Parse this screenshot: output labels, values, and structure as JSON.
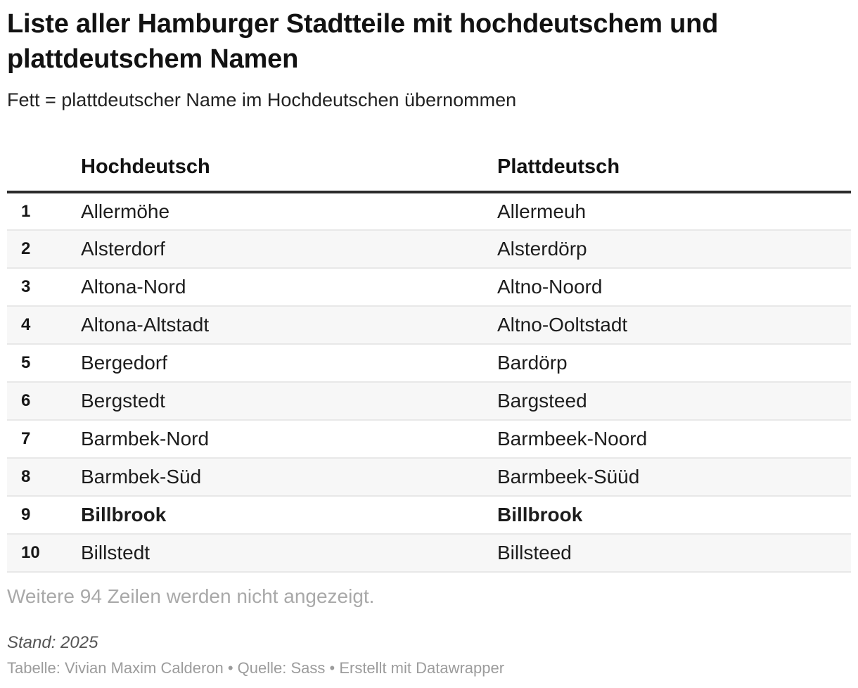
{
  "header": {
    "title": "Liste aller Hamburger Stadtteile mit hochdeutschem und plattdeutschem Namen",
    "subtitle": "Fett = plattdeutscher Name im Hochdeutschen übernommen"
  },
  "chart_data": {
    "type": "table",
    "title": "Liste aller Hamburger Stadtteile mit hochdeutschem und plattdeutschem Namen",
    "columns": [
      "Hochdeutsch",
      "Plattdeutsch"
    ],
    "rows": [
      {
        "num": "1",
        "hochdeutsch": "Allermöhe",
        "plattdeutsch": "Allermeuh",
        "bold": false
      },
      {
        "num": "2",
        "hochdeutsch": "Alsterdorf",
        "plattdeutsch": "Alsterdörp",
        "bold": false
      },
      {
        "num": "3",
        "hochdeutsch": "Altona-Nord",
        "plattdeutsch": "Altno-Noord",
        "bold": false
      },
      {
        "num": "4",
        "hochdeutsch": "Altona-Altstadt",
        "plattdeutsch": "Altno-Ooltstadt",
        "bold": false
      },
      {
        "num": "5",
        "hochdeutsch": "Bergedorf",
        "plattdeutsch": "Bardörp",
        "bold": false
      },
      {
        "num": "6",
        "hochdeutsch": "Bergstedt",
        "plattdeutsch": "Bargsteed",
        "bold": false
      },
      {
        "num": "7",
        "hochdeutsch": "Barmbek-Nord",
        "plattdeutsch": "Barmbeek-Noord",
        "bold": false
      },
      {
        "num": "8",
        "hochdeutsch": "Barmbek-Süd",
        "plattdeutsch": "Barmbeek-Süüd",
        "bold": false
      },
      {
        "num": "9",
        "hochdeutsch": "Billbrook",
        "plattdeutsch": "Billbrook",
        "bold": true
      },
      {
        "num": "10",
        "hochdeutsch": "Billstedt",
        "plattdeutsch": "Billsteed",
        "bold": false
      }
    ],
    "hidden_rows_note": "Weitere 94 Zeilen werden nicht angezeigt.",
    "hidden_rows_count": 94
  },
  "footer": {
    "stand": "Stand: 2025",
    "credits": "Tabelle: Vivian Maxim Calderon • Quelle: Sass • Erstellt mit Datawrapper"
  },
  "colors": {
    "row_alt_bg": "#f7f7f7",
    "row_border": "#e8e8e8",
    "header_rule": "#2b2b2b",
    "text": "#1d1d1d",
    "muted_note": "#a9a9a9",
    "stand_text": "#555555",
    "credits_text": "#9c9c9c"
  }
}
